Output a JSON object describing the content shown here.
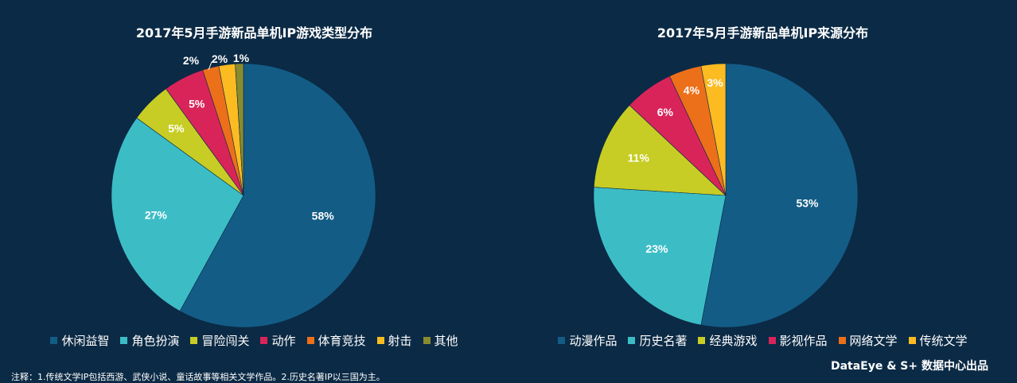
{
  "colors": {
    "background": "#0b2a45"
  },
  "chart_data": [
    {
      "type": "pie",
      "title": "2017年5月手游新品单机IP游戏类型分布",
      "categories": [
        "休闲益智",
        "角色扮演",
        "冒险闯关",
        "动作",
        "体育竞技",
        "射击",
        "其他"
      ],
      "values": [
        58,
        27,
        5,
        5,
        2,
        2,
        1
      ],
      "value_labels": [
        "58%",
        "27%",
        "5%",
        "5%",
        "2%",
        "2%",
        "1%"
      ],
      "colors": [
        "#135c86",
        "#3cbdc6",
        "#c7cd24",
        "#d9245a",
        "#ec6f1a",
        "#fbbb21",
        "#8a8b2d"
      ],
      "legend": "bottom"
    },
    {
      "type": "pie",
      "title": "2017年5月手游新品单机IP来源分布",
      "categories": [
        "动漫作品",
        "历史名著",
        "经典游戏",
        "影视作品",
        "网络文学",
        "传统文学"
      ],
      "values": [
        53,
        23,
        11,
        6,
        4,
        3
      ],
      "value_labels": [
        "53%",
        "23%",
        "11%",
        "6%",
        "4%",
        "3%"
      ],
      "colors": [
        "#135c86",
        "#3cbdc6",
        "#c7cd24",
        "#d9245a",
        "#ec6f1a",
        "#fbbb21"
      ],
      "legend": "bottom"
    }
  ],
  "credit": "DataEye & S+ 数据中心出品",
  "footnote": "注释：1.传统文学IP包括西游、武侠小说、童话故事等相关文学作品。2.历史名著IP以三国为主。"
}
